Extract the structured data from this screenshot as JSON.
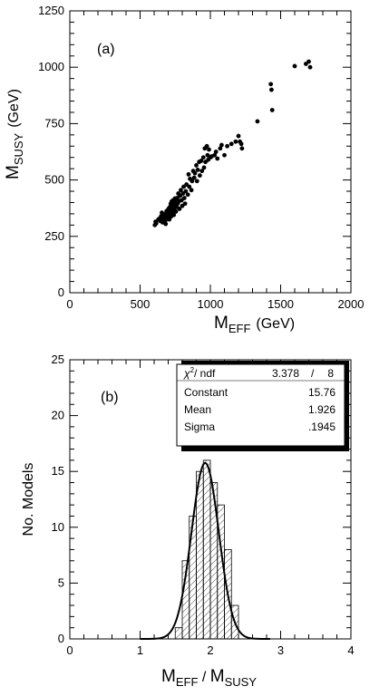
{
  "chart_data": [
    {
      "type": "scatter",
      "panel_label": "(a)",
      "xlabel": {
        "main": "M",
        "sub": "EFF",
        "unit": "(GeV)"
      },
      "ylabel": {
        "main": "M",
        "sub": "SUSY",
        "unit": "(GeV)"
      },
      "xlim": [
        0,
        2000
      ],
      "ylim": [
        0,
        1250
      ],
      "x_ticks": [
        "0",
        "500",
        "1000",
        "1500",
        "2000"
      ],
      "y_ticks": [
        "0",
        "250",
        "500",
        "750",
        "1000",
        "1250"
      ],
      "points": [
        [
          605,
          300
        ],
        [
          610,
          315
        ],
        [
          615,
          308
        ],
        [
          630,
          325
        ],
        [
          640,
          330
        ],
        [
          645,
          318
        ],
        [
          650,
          340
        ],
        [
          655,
          355
        ],
        [
          660,
          312
        ],
        [
          665,
          325
        ],
        [
          670,
          335
        ],
        [
          675,
          348
        ],
        [
          680,
          320
        ],
        [
          682,
          305
        ],
        [
          688,
          362
        ],
        [
          692,
          338
        ],
        [
          695,
          330
        ],
        [
          700,
          355
        ],
        [
          702,
          372
        ],
        [
          705,
          345
        ],
        [
          708,
          325
        ],
        [
          712,
          380
        ],
        [
          715,
          360
        ],
        [
          718,
          395
        ],
        [
          720,
          338
        ],
        [
          722,
          372
        ],
        [
          725,
          405
        ],
        [
          728,
          350
        ],
        [
          730,
          362
        ],
        [
          732,
          390
        ],
        [
          735,
          410
        ],
        [
          738,
          368
        ],
        [
          740,
          345
        ],
        [
          742,
          392
        ],
        [
          745,
          378
        ],
        [
          748,
          418
        ],
        [
          752,
          398
        ],
        [
          755,
          360
        ],
        [
          758,
          405
        ],
        [
          760,
          380
        ],
        [
          765,
          420
        ],
        [
          768,
          395
        ],
        [
          772,
          440
        ],
        [
          775,
          405
        ],
        [
          780,
          372
        ],
        [
          785,
          430
        ],
        [
          790,
          455
        ],
        [
          795,
          410
        ],
        [
          800,
          385
        ],
        [
          805,
          440
        ],
        [
          810,
          470
        ],
        [
          815,
          420
        ],
        [
          820,
          395
        ],
        [
          825,
          450
        ],
        [
          830,
          480
        ],
        [
          840,
          435
        ],
        [
          845,
          525
        ],
        [
          850,
          470
        ],
        [
          855,
          505
        ],
        [
          865,
          455
        ],
        [
          870,
          495
        ],
        [
          878,
          540
        ],
        [
          885,
          510
        ],
        [
          890,
          530
        ],
        [
          900,
          565
        ],
        [
          905,
          495
        ],
        [
          910,
          545
        ],
        [
          920,
          580
        ],
        [
          925,
          520
        ],
        [
          935,
          585
        ],
        [
          940,
          540
        ],
        [
          950,
          600
        ],
        [
          955,
          555
        ],
        [
          960,
          640
        ],
        [
          965,
          580
        ],
        [
          975,
          650
        ],
        [
          980,
          610
        ],
        [
          985,
          590
        ],
        [
          990,
          635
        ],
        [
          1000,
          600
        ],
        [
          1010,
          605
        ],
        [
          1030,
          610
        ],
        [
          1040,
          625
        ],
        [
          1050,
          595
        ],
        [
          1070,
          640
        ],
        [
          1080,
          655
        ],
        [
          1100,
          610
        ],
        [
          1120,
          650
        ],
        [
          1150,
          660
        ],
        [
          1180,
          670
        ],
        [
          1200,
          695
        ],
        [
          1210,
          670
        ],
        [
          1220,
          660
        ],
        [
          1225,
          640
        ],
        [
          1335,
          760
        ],
        [
          1430,
          925
        ],
        [
          1435,
          900
        ],
        [
          1440,
          810
        ],
        [
          1600,
          1005
        ],
        [
          1680,
          1015
        ],
        [
          1700,
          1025
        ],
        [
          1710,
          1000
        ]
      ]
    },
    {
      "type": "bar",
      "panel_label": "(b)",
      "xlabel": {
        "a": "M",
        "a_sub": "EFF",
        "sep": " / ",
        "b": "M",
        "b_sub": "SUSY"
      },
      "ylabel": "No. Models",
      "xlim": [
        0,
        4
      ],
      "ylim": [
        0,
        25
      ],
      "x_ticks": [
        "0",
        "1",
        "2",
        "3",
        "4"
      ],
      "y_ticks": [
        "0",
        "5",
        "10",
        "15",
        "20",
        "25"
      ],
      "histogram": {
        "bin_width": 0.1,
        "bin_starts": [
          1.5,
          1.6,
          1.7,
          1.8,
          1.9,
          2.0,
          2.1,
          2.2,
          2.3
        ],
        "values": [
          1,
          7,
          11,
          15,
          16,
          14,
          12,
          8,
          3
        ]
      },
      "fit": {
        "type": "gaussian",
        "constant": 15.76,
        "mean": 1.926,
        "sigma": 0.1945
      },
      "stats_box": {
        "chi2_label": "χ",
        "chi2_sup": "2",
        "chi2_rest": "/ ndf",
        "chi2_value": "3.378",
        "chi2_slash": "/",
        "ndf_value": "8",
        "rows": [
          {
            "label": "Constant",
            "value": "15.76"
          },
          {
            "label": "Mean",
            "value": "1.926"
          },
          {
            "label": "Sigma",
            "value": ".1945"
          }
        ]
      }
    }
  ]
}
